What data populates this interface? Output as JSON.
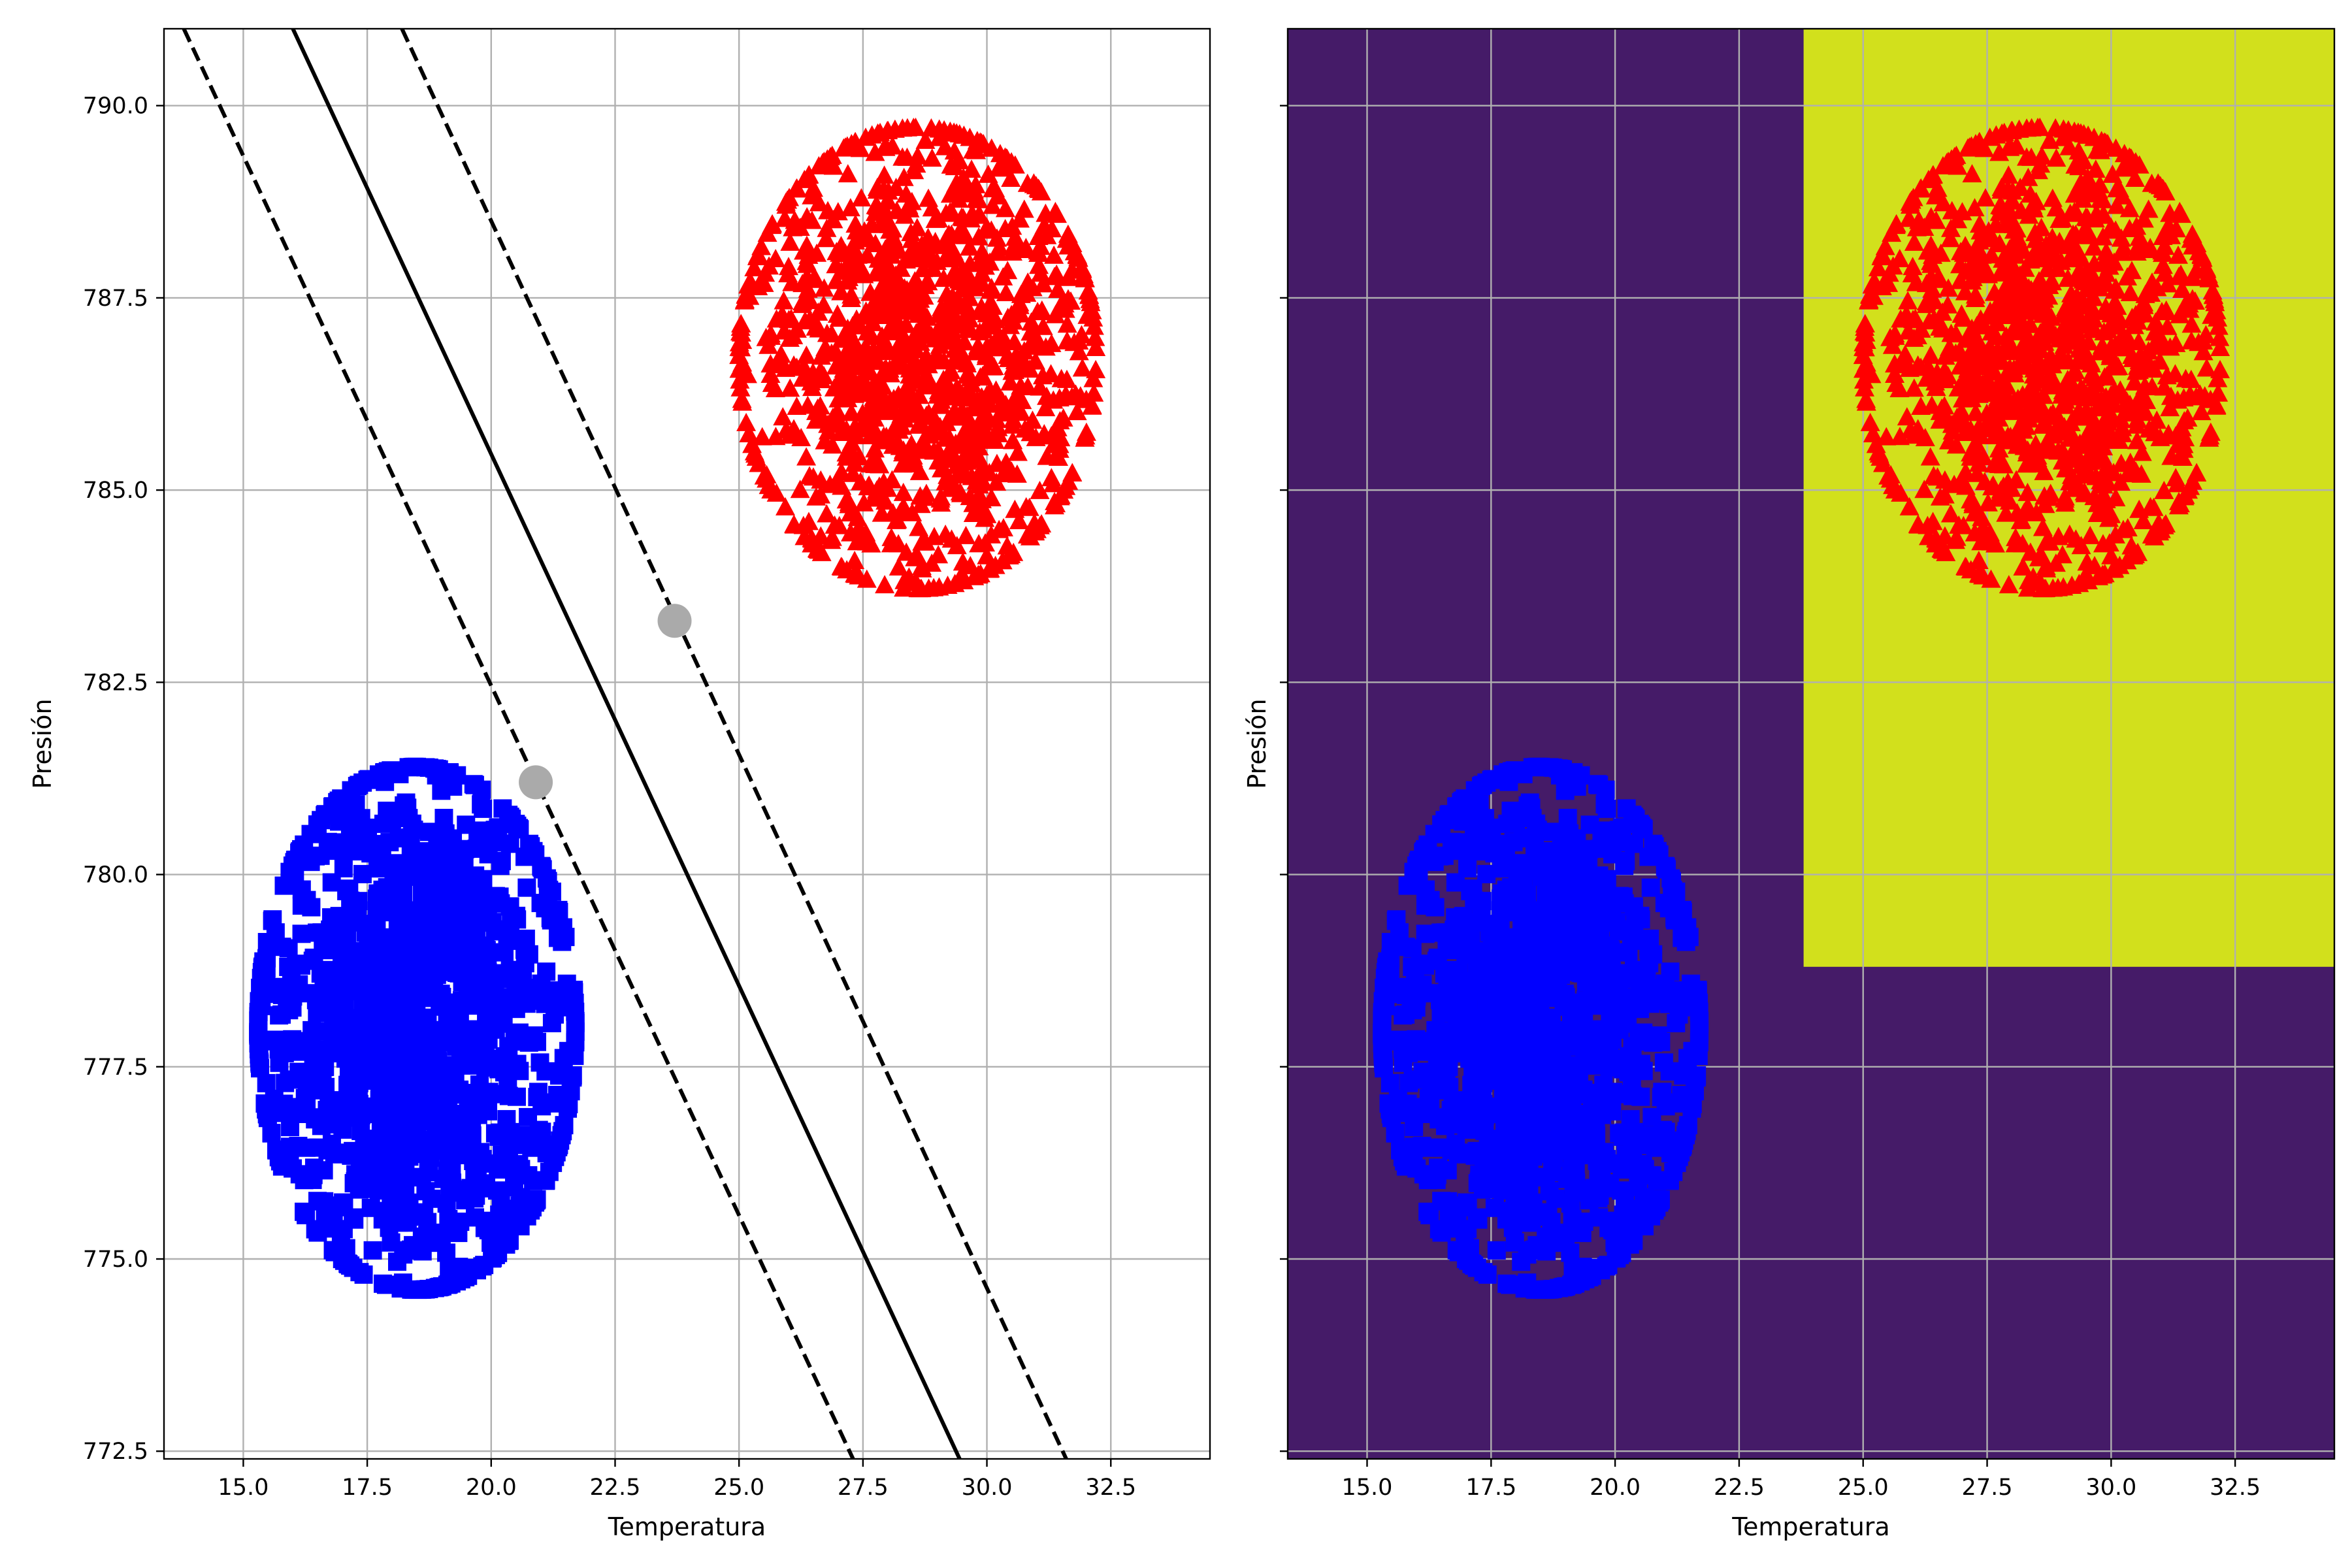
{
  "chart_data": [
    {
      "type": "scatter",
      "xlabel": "Temperatura",
      "ylabel": "Presión",
      "xlim": [
        13.4,
        34.5
      ],
      "ylim": [
        772.4,
        791.0
      ],
      "xticks": [
        15.0,
        17.5,
        20.0,
        22.5,
        25.0,
        27.5,
        30.0,
        32.5
      ],
      "xtick_labels": [
        "15.0",
        "17.5",
        "20.0",
        "22.5",
        "25.0",
        "27.5",
        "30.0",
        "32.5"
      ],
      "yticks": [
        772.5,
        775.0,
        777.5,
        780.0,
        782.5,
        785.0,
        787.5,
        790.0
      ],
      "ytick_labels": [
        "772.5",
        "775.0",
        "777.5",
        "780.0",
        "782.5",
        "785.0",
        "787.5",
        "790.0"
      ],
      "grid": true,
      "clusters": [
        {
          "marker": "square",
          "color": "#0000ff",
          "center": [
            18.5,
            778.0
          ],
          "spread": [
            3.2,
            3.4
          ],
          "count": 1200
        },
        {
          "marker": "triangle",
          "color": "#ff0000",
          "center": [
            28.6,
            786.7
          ],
          "spread": [
            3.6,
            3.0
          ],
          "count": 1200
        }
      ],
      "lines": [
        {
          "style": "solid",
          "color": "#000000",
          "points": [
            [
              16.0,
              791.0
            ],
            [
              29.45,
              772.4
            ]
          ]
        },
        {
          "style": "dashed",
          "color": "#000000",
          "points": [
            [
              13.8,
              791.0
            ],
            [
              27.3,
              772.4
            ]
          ]
        },
        {
          "style": "dashed",
          "color": "#000000",
          "points": [
            [
              18.2,
              791.0
            ],
            [
              31.6,
              772.4
            ]
          ]
        }
      ],
      "support_vectors": [
        {
          "x": 20.9,
          "y": 781.2,
          "color": "#aaaaaa"
        },
        {
          "x": 23.7,
          "y": 783.3,
          "color": "#aaaaaa"
        }
      ]
    },
    {
      "type": "scatter",
      "xlabel": "Temperatura",
      "ylabel": "Presión",
      "xlim": [
        13.4,
        34.5
      ],
      "ylim": [
        772.4,
        791.0
      ],
      "xticks": [
        15.0,
        17.5,
        20.0,
        22.5,
        25.0,
        27.5,
        30.0,
        32.5
      ],
      "xtick_labels": [
        "15.0",
        "17.5",
        "20.0",
        "22.5",
        "25.0",
        "27.5",
        "30.0",
        "32.5"
      ],
      "yticks": [
        772.5,
        775.0,
        777.5,
        780.0,
        782.5,
        785.0,
        787.5,
        790.0
      ],
      "grid": true,
      "background_color": "#451b68",
      "regions": [
        {
          "x_from": 23.8,
          "x_to": 34.5,
          "y_from": 778.8,
          "y_to": 791.0,
          "color": "#d2e01c"
        }
      ],
      "clusters": [
        {
          "marker": "square",
          "color": "#0000ff",
          "center": [
            18.5,
            778.0
          ],
          "spread": [
            3.2,
            3.4
          ],
          "count": 1200
        },
        {
          "marker": "triangle",
          "color": "#ff0000",
          "center": [
            28.6,
            786.7
          ],
          "spread": [
            3.6,
            3.0
          ],
          "count": 1200
        }
      ]
    }
  ]
}
